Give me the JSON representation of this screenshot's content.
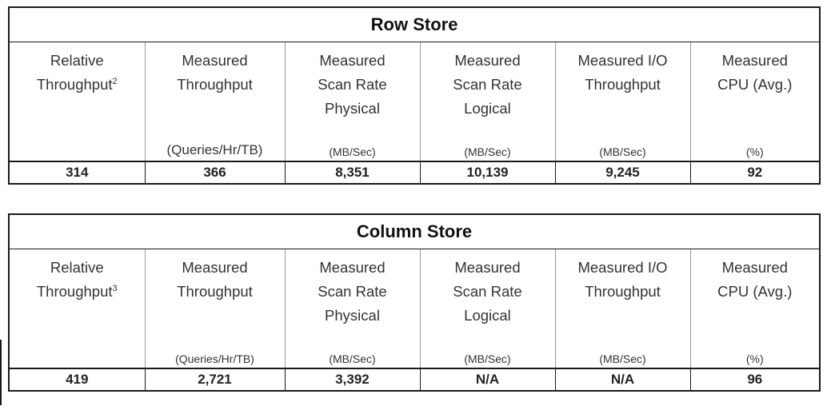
{
  "row_store": {
    "title": "Row Store",
    "columns": [
      {
        "lines": [
          "Relative",
          "Throughput"
        ],
        "superscript": "2",
        "unit": "",
        "value": "314"
      },
      {
        "lines": [
          "Measured",
          "Throughput"
        ],
        "unit": "(Queries/Hr/TB)",
        "value": "366"
      },
      {
        "lines": [
          "Measured",
          "Scan Rate",
          "Physical"
        ],
        "unit": "(MB/Sec)",
        "value": "8,351"
      },
      {
        "lines": [
          "Measured",
          "Scan Rate",
          "Logical"
        ],
        "unit": "(MB/Sec)",
        "value": "10,139"
      },
      {
        "lines": [
          "Measured I/O",
          "Throughput"
        ],
        "unit": "(MB/Sec)",
        "value": "9,245"
      },
      {
        "lines": [
          "Measured",
          "CPU (Avg.)"
        ],
        "unit": "(%)",
        "value": "92"
      }
    ]
  },
  "column_store": {
    "title": "Column Store",
    "columns": [
      {
        "lines": [
          "Relative",
          "Throughput"
        ],
        "superscript": "3",
        "unit": "",
        "value": "419"
      },
      {
        "lines": [
          "Measured",
          "Throughput"
        ],
        "unit": "(Queries/Hr/TB)",
        "value": "2,721"
      },
      {
        "lines": [
          "Measured",
          "Scan Rate",
          "Physical"
        ],
        "unit": "(MB/Sec)",
        "value": "3,392"
      },
      {
        "lines": [
          "Measured",
          "Scan Rate",
          "Logical"
        ],
        "unit": "(MB/Sec)",
        "value": "N/A"
      },
      {
        "lines": [
          "Measured I/O",
          "Throughput"
        ],
        "unit": "(MB/Sec)",
        "value": "N/A"
      },
      {
        "lines": [
          "Measured",
          "CPU (Avg.)"
        ],
        "unit": "(%)",
        "value": "96"
      }
    ]
  }
}
